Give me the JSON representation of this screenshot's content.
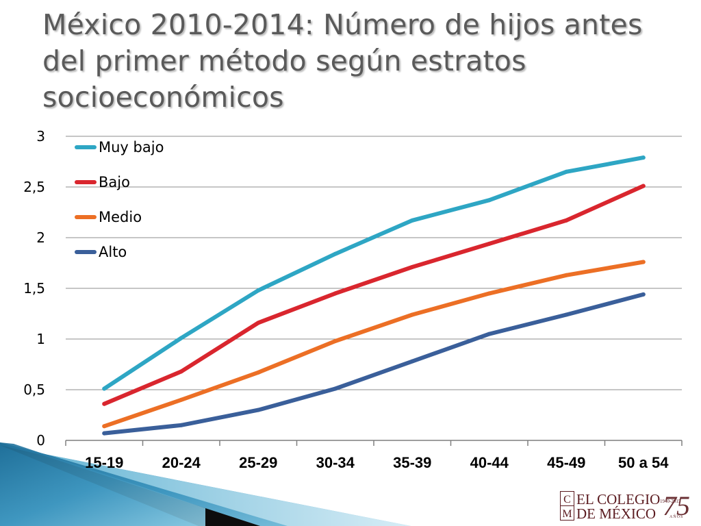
{
  "slide": {
    "title": "México 2010-2014: Número de hijos antes del primer método según estratos socioeconómicos"
  },
  "logo": {
    "line1": "EL COLEGIO",
    "line2": "DE MÉXICO",
    "mark_c": "C",
    "mark_m": "M",
    "anniversary": "75",
    "years": "1940-2015",
    "anos": "AÑOS"
  },
  "colors": {
    "title": "#5a5a5a",
    "grid": "#8c8c8c",
    "axis_text": "#000000",
    "logo": "#5a1a1f",
    "decoration_blue": "#2f7fa8"
  },
  "chart_data": {
    "type": "line",
    "title": "",
    "xlabel": "",
    "ylabel": "",
    "categories": [
      "15-19",
      "20-24",
      "25-29",
      "30-34",
      "35-39",
      "40-44",
      "45-49",
      "50 a 54"
    ],
    "ylim": [
      0,
      3
    ],
    "yticks": [
      0,
      0.5,
      1,
      1.5,
      2,
      2.5,
      3
    ],
    "ytick_labels": [
      "0",
      "0,5",
      "1",
      "1,5",
      "2",
      "2,5",
      "3"
    ],
    "grid": true,
    "legend_position": "top-left",
    "series": [
      {
        "name": "Muy bajo",
        "color": "#2ea6c4",
        "values": [
          0.51,
          1.01,
          1.48,
          1.84,
          2.17,
          2.37,
          2.65,
          2.79
        ]
      },
      {
        "name": "Bajo",
        "color": "#d9262e",
        "values": [
          0.36,
          0.68,
          1.16,
          1.45,
          1.71,
          1.94,
          2.17,
          2.51
        ]
      },
      {
        "name": "Medio",
        "color": "#ec6f25",
        "values": [
          0.14,
          0.4,
          0.67,
          0.98,
          1.24,
          1.45,
          1.63,
          1.76
        ]
      },
      {
        "name": "Alto",
        "color": "#3a5f9a",
        "values": [
          0.07,
          0.15,
          0.3,
          0.51,
          0.78,
          1.05,
          1.24,
          1.44
        ]
      }
    ]
  }
}
